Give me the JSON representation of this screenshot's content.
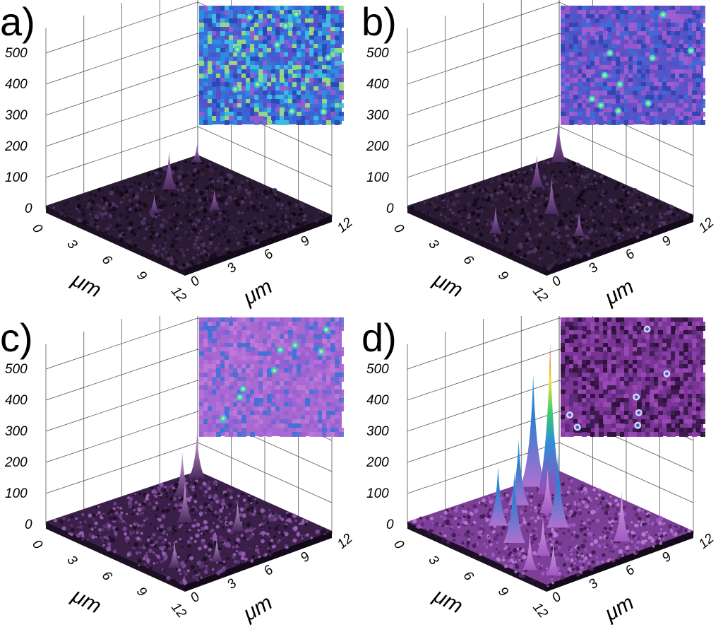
{
  "figure": {
    "z_ticks": [
      "0",
      "100",
      "200",
      "300",
      "400",
      "500"
    ],
    "x_ticks": [
      "0",
      "3",
      "6",
      "9",
      "12"
    ],
    "y_ticks": [
      "0",
      "3",
      "6",
      "9",
      "12"
    ],
    "x_unit": "μm",
    "y_unit": "μm"
  },
  "chart_data": [
    {
      "type": "surface",
      "panel": "a)",
      "title": "",
      "xlabel": "μm",
      "ylabel": "μm",
      "zlabel": "",
      "xlim": [
        0,
        12
      ],
      "ylim": [
        0,
        12
      ],
      "zlim": [
        0,
        500
      ],
      "surface_color": "#2a1a33",
      "peaks": [
        {
          "x": 0.5,
          "y": 0.5,
          "z": 60
        },
        {
          "x": 2.5,
          "y": 4.5,
          "z": 130
        },
        {
          "x": 6.5,
          "y": 4.5,
          "z": 70
        },
        {
          "x": 4.5,
          "y": 7.5,
          "z": 60
        }
      ],
      "inset": {
        "type": "heatmap",
        "palette": "blue-magenta-green",
        "dominant": "#3a6fd8"
      }
    },
    {
      "type": "surface",
      "panel": "b)",
      "title": "",
      "xlabel": "μm",
      "ylabel": "μm",
      "zlabel": "",
      "xlim": [
        0,
        12
      ],
      "ylim": [
        0,
        12
      ],
      "zlim": [
        0,
        500
      ],
      "surface_color": "#2a1a33",
      "peaks": [
        {
          "x": 0.5,
          "y": 0.5,
          "z": 140
        },
        {
          "x": 2.5,
          "y": 4.0,
          "z": 110
        },
        {
          "x": 6.0,
          "y": 6.0,
          "z": 120
        },
        {
          "x": 6.0,
          "y": 10.5,
          "z": 90
        },
        {
          "x": 9.5,
          "y": 7.0,
          "z": 80
        }
      ],
      "inset": {
        "type": "heatmap",
        "palette": "blue-magenta",
        "dominant": "#5a54c8"
      }
    },
    {
      "type": "surface",
      "panel": "c)",
      "title": "",
      "xlabel": "μm",
      "ylabel": "μm",
      "zlabel": "",
      "xlim": [
        0,
        12
      ],
      "ylim": [
        0,
        12
      ],
      "zlim": [
        0,
        500
      ],
      "surface_color": "#3a1f48",
      "peaks": [
        {
          "x": 0.5,
          "y": 0.5,
          "z": 150
        },
        {
          "x": 2.0,
          "y": 3.0,
          "z": 150
        },
        {
          "x": 5.0,
          "y": 5.5,
          "z": 140
        },
        {
          "x": 8.0,
          "y": 4.0,
          "z": 100
        },
        {
          "x": 9.5,
          "y": 10.5,
          "z": 90
        },
        {
          "x": 10.5,
          "y": 8.0,
          "z": 80
        }
      ],
      "inset": {
        "type": "heatmap",
        "palette": "magenta-blue",
        "dominant": "#a569d0"
      }
    },
    {
      "type": "surface",
      "panel": "d)",
      "title": "",
      "xlabel": "μm",
      "ylabel": "μm",
      "zlabel": "",
      "xlim": [
        0,
        12
      ],
      "ylim": [
        0,
        12
      ],
      "zlim": [
        0,
        500
      ],
      "surface_color": "#7b3f98",
      "peaks": [
        {
          "x": 2.0,
          "y": 2.5,
          "z": 510
        },
        {
          "x": 0.5,
          "y": 2.5,
          "z": 380
        },
        {
          "x": 2.0,
          "y": 5.0,
          "z": 220
        },
        {
          "x": 3.5,
          "y": 8.0,
          "z": 200
        },
        {
          "x": 6.0,
          "y": 5.5,
          "z": 250
        },
        {
          "x": 6.0,
          "y": 9.0,
          "z": 240
        },
        {
          "x": 10.0,
          "y": 4.0,
          "z": 170
        },
        {
          "x": 8.5,
          "y": 9.0,
          "z": 130
        },
        {
          "x": 9.5,
          "y": 11.0,
          "z": 120
        },
        {
          "x": 11.0,
          "y": 10.5,
          "z": 110
        },
        {
          "x": 4.0,
          "y": 4.5,
          "z": 150
        }
      ],
      "inset": {
        "type": "heatmap",
        "palette": "magenta-black",
        "dominant": "#7c3597"
      }
    }
  ]
}
